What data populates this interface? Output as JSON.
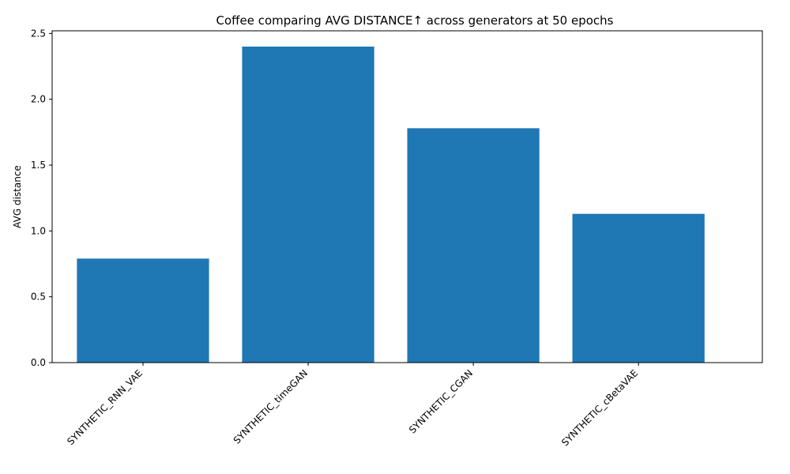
{
  "chart_data": {
    "type": "bar",
    "title": "Coffee comparing AVG DISTANCE↑  across generators at 50 epochs",
    "xlabel": "",
    "ylabel": "AVG distance",
    "categories": [
      "SYNTHETIC_RNN_VAE",
      "SYNTHETIC_timeGAN",
      "SYNTHETIC_CGAN",
      "SYNTHETIC_cBetaVAE"
    ],
    "values": [
      0.79,
      2.4,
      1.78,
      1.13
    ],
    "ylim": [
      0,
      2.52
    ],
    "yticks": [
      "0.0",
      "0.5",
      "1.0",
      "1.5",
      "2.0",
      "2.5"
    ],
    "grid": false,
    "bar_color": "#1f77b4"
  }
}
